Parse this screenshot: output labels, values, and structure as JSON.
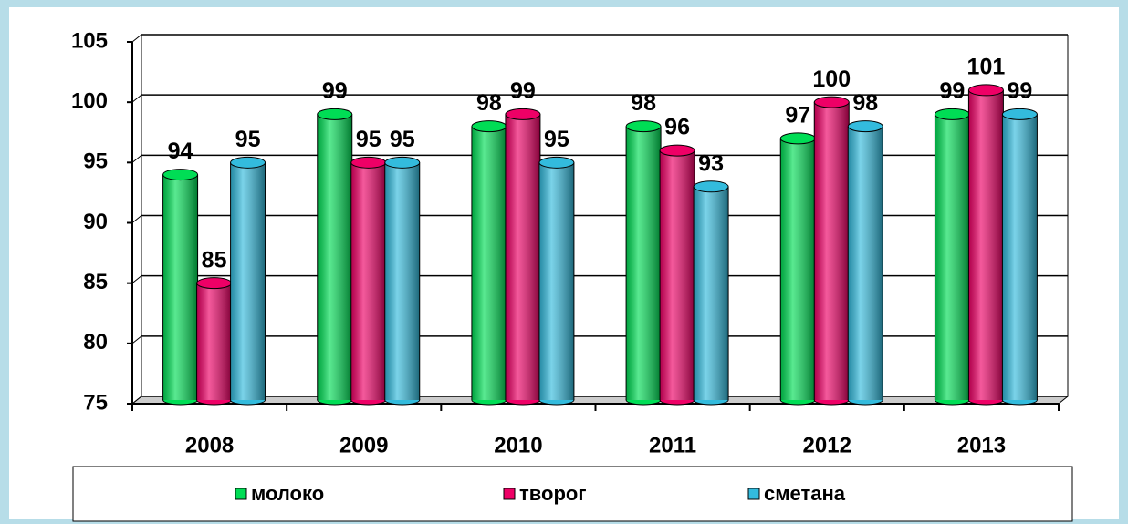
{
  "chart_data": {
    "type": "bar",
    "categories": [
      "2008",
      "2009",
      "2010",
      "2011",
      "2012",
      "2013"
    ],
    "series": [
      {
        "name": "молоко",
        "color": "#00dd55",
        "values": [
          94,
          99,
          98,
          98,
          97,
          99
        ]
      },
      {
        "name": "творог",
        "color": "#ee0066",
        "values": [
          85,
          95,
          99,
          96,
          100,
          101
        ]
      },
      {
        "name": "сметана",
        "color": "#33bbdd",
        "values": [
          95,
          95,
          95,
          93,
          98,
          99
        ]
      }
    ],
    "ylim": [
      75,
      105
    ],
    "yticks": [
      75,
      80,
      85,
      90,
      95,
      100,
      105
    ],
    "grid": true,
    "legend": "bottom"
  }
}
